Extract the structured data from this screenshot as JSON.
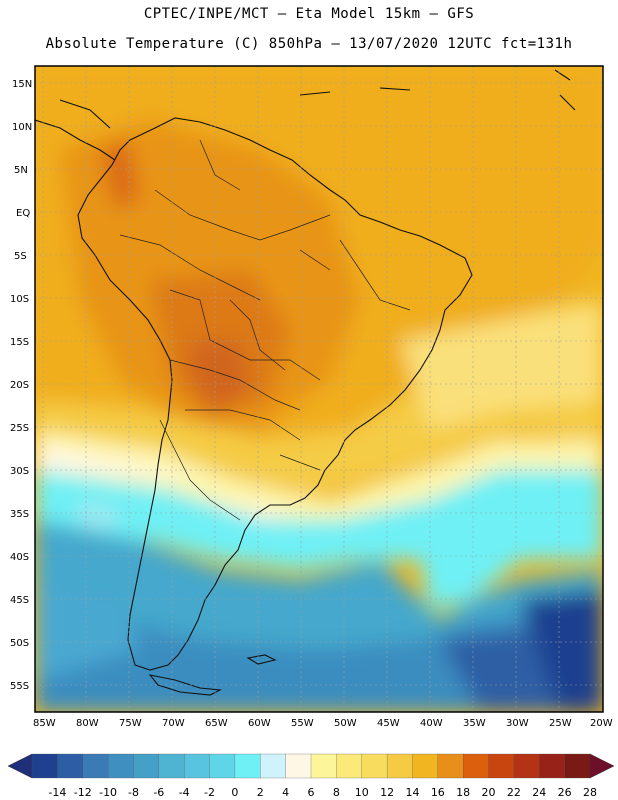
{
  "title_line1": "CPTEC/INPE/MCT –  Eta Model 15km – GFS",
  "title_line2": "Absolute Temperature (C) 850hPa – 13/07/2020 12UTC fct=131h",
  "lat_labels": [
    "15N",
    "10N",
    "5N",
    "EQ",
    "5S",
    "10S",
    "15S",
    "20S",
    "25S",
    "30S",
    "35S",
    "40S",
    "45S",
    "50S",
    "55S"
  ],
  "lon_labels": [
    "85W",
    "80W",
    "75W",
    "70W",
    "65W",
    "60W",
    "55W",
    "50W",
    "45W",
    "40W",
    "35W",
    "30W",
    "25W",
    "20W"
  ],
  "colorbar": {
    "labels": [
      "-14",
      "-12",
      "-10",
      "-8",
      "-6",
      "-4",
      "-2",
      "0",
      "2",
      "4",
      "6",
      "8",
      "10",
      "12",
      "14",
      "16",
      "18",
      "20",
      "22",
      "24",
      "26",
      "28"
    ],
    "colors": [
      "#1f3f8f",
      "#2d5ea5",
      "#3a7ab5",
      "#3f8fc0",
      "#45a0c8",
      "#4fb3d2",
      "#58c4df",
      "#5fd6e8",
      "#6ef0f5",
      "#d0f3fb",
      "#fff7e6",
      "#fdf59a",
      "#fbe97a",
      "#f8dc5d",
      "#f4cb43",
      "#f0b520",
      "#e88e1a",
      "#db5f0d",
      "#c94510",
      "#b33314",
      "#962218",
      "#7a1a14"
    ],
    "under_color": "#1f2f7a",
    "over_color": "#6e0f2a"
  }
}
